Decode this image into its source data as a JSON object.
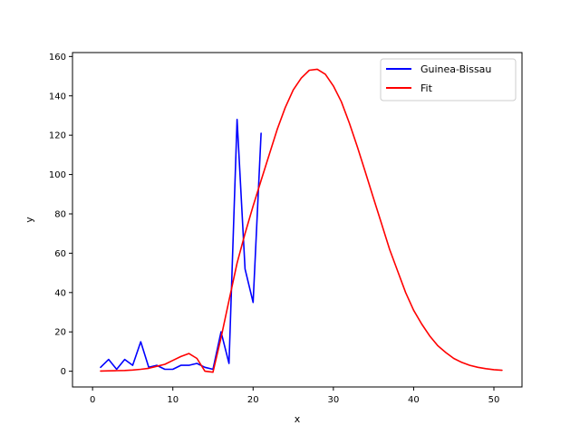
{
  "chart_data": {
    "type": "line",
    "title": "",
    "xlabel": "x",
    "ylabel": "y",
    "xlim": [
      -2.5,
      53.5
    ],
    "ylim": [
      -8,
      162
    ],
    "xticks": [
      0,
      10,
      20,
      30,
      40,
      50
    ],
    "yticks": [
      0,
      20,
      40,
      60,
      80,
      100,
      120,
      140,
      160
    ],
    "grid": false,
    "legend_position": "top-right",
    "series": [
      {
        "name": "Guinea-Bissau",
        "color": "#0000ff",
        "x": [
          1,
          2,
          3,
          4,
          5,
          6,
          7,
          8,
          9,
          10,
          11,
          12,
          13,
          14,
          15,
          16,
          17,
          18,
          19,
          20,
          21
        ],
        "y": [
          2,
          6,
          1,
          6,
          3,
          15,
          2,
          3,
          1,
          1,
          3,
          3,
          4,
          2,
          1,
          20,
          4,
          128,
          52,
          35,
          121
        ]
      },
      {
        "name": "Fit",
        "color": "#ff0000",
        "x": [
          1,
          2,
          3,
          4,
          5,
          6,
          7,
          8,
          9,
          10,
          11,
          12,
          13,
          14,
          15,
          16,
          17,
          18,
          19,
          20,
          21,
          22,
          23,
          24,
          25,
          26,
          27,
          28,
          29,
          30,
          31,
          32,
          33,
          34,
          35,
          36,
          37,
          38,
          39,
          40,
          41,
          42,
          43,
          44,
          45,
          46,
          47,
          48,
          49,
          50,
          51
        ],
        "y": [
          0.1,
          0.2,
          0.3,
          0.4,
          0.6,
          1,
          1.5,
          2.5,
          3.5,
          5.5,
          7.5,
          9,
          6.5,
          0,
          -0.5,
          17,
          36,
          55,
          70,
          84,
          97,
          110,
          123,
          134,
          143,
          149,
          153,
          153.5,
          151,
          145,
          137,
          126,
          114,
          101,
          88,
          75,
          62,
          51,
          40,
          31,
          24,
          18,
          13,
          9.5,
          6.5,
          4.5,
          3,
          2,
          1.3,
          0.8,
          0.5
        ]
      }
    ]
  }
}
